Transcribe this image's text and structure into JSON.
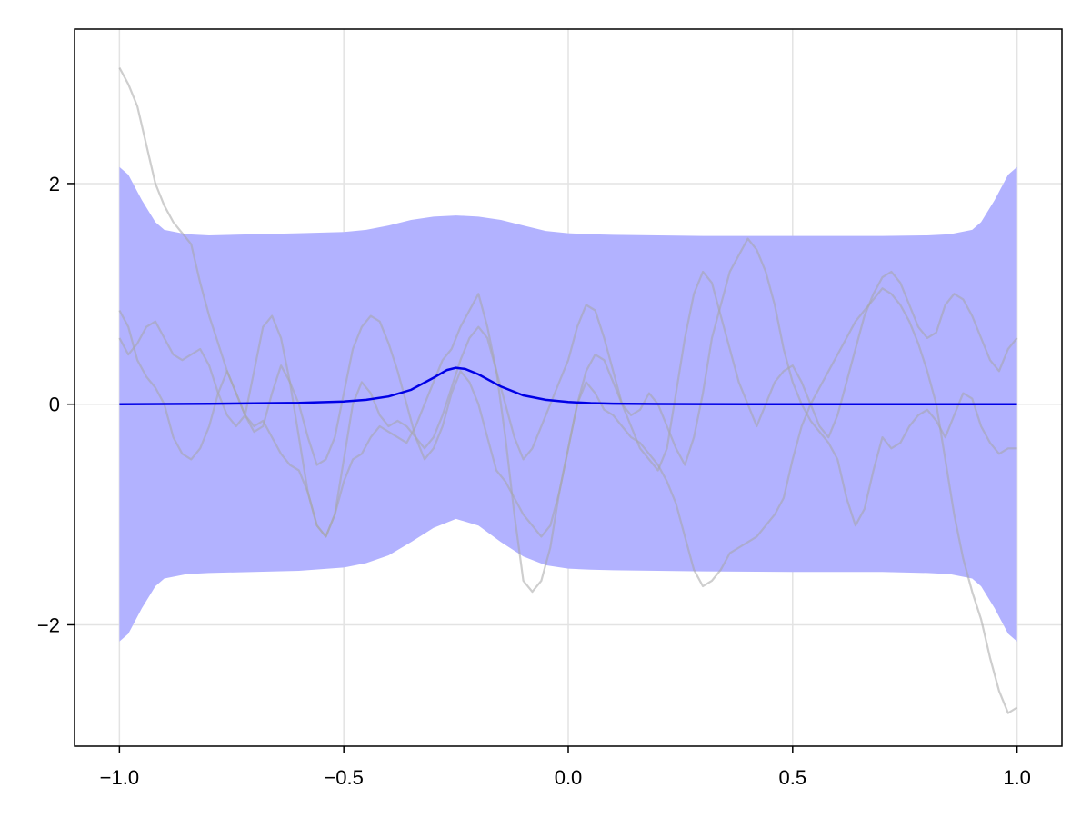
{
  "chart_data": {
    "type": "line",
    "title": "",
    "xlabel": "",
    "ylabel": "",
    "xlim": [
      -1.1,
      1.1
    ],
    "ylim": [
      -3.1,
      3.4
    ],
    "grid": true,
    "legend": "none",
    "xticks": [
      -1.0,
      -0.5,
      0.0,
      0.5,
      1.0
    ],
    "xtick_labels": [
      "−1.0",
      "−0.5",
      "0.0",
      "0.5",
      "1.0"
    ],
    "yticks": [
      -2,
      0,
      2
    ],
    "ytick_labels": [
      "−2",
      "0",
      "2"
    ],
    "colors": {
      "mean": "#0000e6",
      "band": "#b2b2ff",
      "samples": "#a6a6a6",
      "grid": "#e3e3e3",
      "frame": "#000000"
    },
    "band": {
      "x": [
        -1.0,
        -0.98,
        -0.95,
        -0.92,
        -0.9,
        -0.85,
        -0.8,
        -0.7,
        -0.6,
        -0.5,
        -0.45,
        -0.4,
        -0.35,
        -0.3,
        -0.25,
        -0.2,
        -0.15,
        -0.1,
        -0.05,
        0.0,
        0.05,
        0.1,
        0.2,
        0.3,
        0.5,
        0.7,
        0.8,
        0.85,
        0.9,
        0.92,
        0.95,
        0.98,
        1.0
      ],
      "upper": [
        2.15,
        2.08,
        1.85,
        1.65,
        1.58,
        1.54,
        1.53,
        1.54,
        1.55,
        1.56,
        1.58,
        1.62,
        1.67,
        1.7,
        1.71,
        1.7,
        1.67,
        1.62,
        1.57,
        1.55,
        1.54,
        1.535,
        1.53,
        1.525,
        1.525,
        1.525,
        1.53,
        1.54,
        1.58,
        1.65,
        1.85,
        2.08,
        2.15
      ],
      "lower": [
        -2.15,
        -2.08,
        -1.85,
        -1.65,
        -1.58,
        -1.54,
        -1.53,
        -1.52,
        -1.51,
        -1.48,
        -1.44,
        -1.37,
        -1.25,
        -1.12,
        -1.04,
        -1.1,
        -1.25,
        -1.38,
        -1.46,
        -1.49,
        -1.5,
        -1.505,
        -1.51,
        -1.515,
        -1.52,
        -1.52,
        -1.53,
        -1.54,
        -1.58,
        -1.65,
        -1.85,
        -2.08,
        -2.15
      ]
    },
    "mean": {
      "x": [
        -1.0,
        -0.8,
        -0.6,
        -0.5,
        -0.45,
        -0.4,
        -0.35,
        -0.3,
        -0.27,
        -0.25,
        -0.23,
        -0.2,
        -0.15,
        -0.1,
        -0.05,
        0.0,
        0.05,
        0.1,
        0.2,
        0.4,
        0.6,
        0.8,
        1.0
      ],
      "y": [
        0.0,
        0.003,
        0.012,
        0.025,
        0.04,
        0.07,
        0.13,
        0.24,
        0.31,
        0.33,
        0.32,
        0.27,
        0.16,
        0.08,
        0.04,
        0.02,
        0.01,
        0.005,
        0.002,
        0.0,
        0.0,
        0.0,
        0.0
      ]
    },
    "series": [
      {
        "x": [
          -1.0,
          -0.98,
          -0.96,
          -0.94,
          -0.92,
          -0.9,
          -0.88,
          -0.86,
          -0.84,
          -0.82,
          -0.8,
          -0.78,
          -0.76,
          -0.74,
          -0.72,
          -0.7,
          -0.68,
          -0.66,
          -0.64,
          -0.62,
          -0.6,
          -0.58,
          -0.56,
          -0.54,
          -0.52,
          -0.5,
          -0.48,
          -0.46,
          -0.44,
          -0.42,
          -0.4,
          -0.38,
          -0.36,
          -0.34,
          -0.32,
          -0.3,
          -0.28,
          -0.26,
          -0.24,
          -0.22,
          -0.2,
          -0.18,
          -0.16,
          -0.14,
          -0.12,
          -0.1,
          -0.08,
          -0.06,
          -0.04,
          -0.02,
          0.0,
          0.02,
          0.04,
          0.06,
          0.08,
          0.1,
          0.12,
          0.14,
          0.16,
          0.18,
          0.2,
          0.22,
          0.24,
          0.26,
          0.28,
          0.3,
          0.32,
          0.34,
          0.36,
          0.38,
          0.4,
          0.42,
          0.44,
          0.46,
          0.48,
          0.5,
          0.52,
          0.54,
          0.56,
          0.58,
          0.6,
          0.62,
          0.64,
          0.66,
          0.68,
          0.7,
          0.72,
          0.74,
          0.76,
          0.78,
          0.8,
          0.82,
          0.84,
          0.86,
          0.88,
          0.9,
          0.92,
          0.94,
          0.96,
          0.98,
          1.0
        ],
        "y": [
          3.05,
          2.9,
          2.7,
          2.35,
          2.0,
          1.8,
          1.65,
          1.55,
          1.45,
          1.1,
          0.8,
          0.55,
          0.3,
          0.1,
          -0.1,
          -0.2,
          -0.15,
          -0.3,
          -0.45,
          -0.55,
          -0.6,
          -0.8,
          -1.1,
          -1.2,
          -1.0,
          -0.7,
          -0.5,
          -0.45,
          -0.3,
          -0.2,
          -0.25,
          -0.3,
          -0.35,
          -0.2,
          0.0,
          0.2,
          0.4,
          0.5,
          0.7,
          0.85,
          1.0,
          0.7,
          0.3,
          -0.3,
          -1.0,
          -1.6,
          -1.7,
          -1.6,
          -1.3,
          -0.8,
          -0.4,
          0.0,
          0.2,
          0.1,
          -0.05,
          -0.1,
          -0.2,
          -0.3,
          -0.35,
          -0.45,
          -0.55,
          -0.7,
          -0.9,
          -1.2,
          -1.5,
          -1.65,
          -1.6,
          -1.5,
          -1.35,
          -1.3,
          -1.25,
          -1.2,
          -1.1,
          -1.0,
          -0.85,
          -0.5,
          -0.2,
          0.0,
          0.15,
          0.3,
          0.45,
          0.6,
          0.75,
          0.85,
          0.95,
          1.05,
          1.0,
          0.9,
          0.75,
          0.55,
          0.3,
          0.0,
          -0.5,
          -1.0,
          -1.4,
          -1.7,
          -1.95,
          -2.3,
          -2.6,
          -2.8,
          -2.75
        ]
      },
      {
        "x": [
          -1.0,
          -0.98,
          -0.96,
          -0.94,
          -0.92,
          -0.9,
          -0.88,
          -0.86,
          -0.84,
          -0.82,
          -0.8,
          -0.78,
          -0.76,
          -0.74,
          -0.72,
          -0.7,
          -0.68,
          -0.66,
          -0.64,
          -0.62,
          -0.6,
          -0.58,
          -0.56,
          -0.54,
          -0.52,
          -0.5,
          -0.48,
          -0.46,
          -0.44,
          -0.42,
          -0.4,
          -0.38,
          -0.36,
          -0.34,
          -0.32,
          -0.3,
          -0.28,
          -0.26,
          -0.24,
          -0.22,
          -0.2,
          -0.18,
          -0.16,
          -0.14,
          -0.12,
          -0.1,
          -0.08,
          -0.06,
          -0.04,
          -0.02,
          0.0,
          0.02,
          0.04,
          0.06,
          0.08,
          0.1,
          0.12,
          0.14,
          0.16,
          0.18,
          0.2,
          0.22,
          0.24,
          0.26,
          0.28,
          0.3,
          0.32,
          0.34,
          0.36,
          0.38,
          0.4,
          0.42,
          0.44,
          0.46,
          0.48,
          0.5,
          0.52,
          0.54,
          0.56,
          0.58,
          0.6,
          0.62,
          0.64,
          0.66,
          0.68,
          0.7,
          0.72,
          0.74,
          0.76,
          0.78,
          0.8,
          0.82,
          0.84,
          0.86,
          0.88,
          0.9,
          0.92,
          0.94,
          0.96,
          0.98,
          1.0
        ],
        "y": [
          0.85,
          0.7,
          0.4,
          0.25,
          0.15,
          0.0,
          -0.3,
          -0.45,
          -0.5,
          -0.4,
          -0.2,
          0.1,
          0.3,
          0.1,
          -0.1,
          -0.25,
          -0.2,
          0.1,
          0.35,
          0.2,
          0.0,
          -0.3,
          -0.55,
          -0.5,
          -0.3,
          0.1,
          0.5,
          0.7,
          0.8,
          0.75,
          0.55,
          0.3,
          0.0,
          -0.3,
          -0.5,
          -0.4,
          -0.2,
          0.1,
          0.3,
          0.2,
          0.0,
          -0.3,
          -0.6,
          -0.7,
          -0.85,
          -1.0,
          -1.1,
          -1.2,
          -1.1,
          -0.8,
          -0.4,
          0.0,
          0.3,
          0.45,
          0.4,
          0.2,
          0.0,
          -0.2,
          -0.4,
          -0.5,
          -0.6,
          -0.4,
          0.1,
          0.6,
          1.0,
          1.2,
          1.1,
          0.8,
          0.5,
          0.2,
          0.0,
          -0.2,
          0.0,
          0.2,
          0.3,
          0.35,
          0.2,
          0.0,
          -0.2,
          -0.3,
          -0.1,
          0.2,
          0.5,
          0.8,
          1.0,
          1.15,
          1.2,
          1.1,
          0.9,
          0.7,
          0.6,
          0.65,
          0.9,
          1.0,
          0.95,
          0.8,
          0.6,
          0.4,
          0.3,
          0.5,
          0.6
        ]
      },
      {
        "x": [
          -1.0,
          -0.98,
          -0.96,
          -0.94,
          -0.92,
          -0.9,
          -0.88,
          -0.86,
          -0.84,
          -0.82,
          -0.8,
          -0.78,
          -0.76,
          -0.74,
          -0.72,
          -0.7,
          -0.68,
          -0.66,
          -0.64,
          -0.62,
          -0.6,
          -0.58,
          -0.56,
          -0.54,
          -0.52,
          -0.5,
          -0.48,
          -0.46,
          -0.44,
          -0.42,
          -0.4,
          -0.38,
          -0.36,
          -0.34,
          -0.32,
          -0.3,
          -0.28,
          -0.26,
          -0.24,
          -0.22,
          -0.2,
          -0.18,
          -0.16,
          -0.14,
          -0.12,
          -0.1,
          -0.08,
          -0.06,
          -0.04,
          -0.02,
          0.0,
          0.02,
          0.04,
          0.06,
          0.08,
          0.1,
          0.12,
          0.14,
          0.16,
          0.18,
          0.2,
          0.22,
          0.24,
          0.26,
          0.28,
          0.3,
          0.32,
          0.34,
          0.36,
          0.38,
          0.4,
          0.42,
          0.44,
          0.46,
          0.48,
          0.5,
          0.52,
          0.54,
          0.56,
          0.58,
          0.6,
          0.62,
          0.64,
          0.66,
          0.68,
          0.7,
          0.72,
          0.74,
          0.76,
          0.78,
          0.8,
          0.82,
          0.84,
          0.86,
          0.88,
          0.9,
          0.92,
          0.94,
          0.96,
          0.98,
          1.0
        ],
        "y": [
          0.6,
          0.45,
          0.55,
          0.7,
          0.75,
          0.6,
          0.45,
          0.4,
          0.45,
          0.5,
          0.35,
          0.1,
          -0.1,
          -0.2,
          -0.1,
          0.3,
          0.7,
          0.8,
          0.6,
          0.2,
          -0.3,
          -0.8,
          -1.1,
          -1.2,
          -1.0,
          -0.5,
          0.0,
          0.2,
          0.1,
          -0.1,
          -0.2,
          -0.15,
          -0.2,
          -0.3,
          -0.4,
          -0.3,
          -0.1,
          0.15,
          0.4,
          0.6,
          0.7,
          0.6,
          0.3,
          0.0,
          -0.3,
          -0.5,
          -0.4,
          -0.2,
          0.0,
          0.2,
          0.4,
          0.7,
          0.9,
          0.85,
          0.6,
          0.3,
          0.0,
          -0.1,
          -0.05,
          0.1,
          0.0,
          -0.2,
          -0.4,
          -0.55,
          -0.3,
          0.1,
          0.6,
          0.9,
          1.2,
          1.35,
          1.5,
          1.4,
          1.2,
          0.9,
          0.5,
          0.2,
          0.0,
          -0.15,
          -0.25,
          -0.35,
          -0.5,
          -0.85,
          -1.1,
          -0.95,
          -0.6,
          -0.3,
          -0.4,
          -0.35,
          -0.2,
          -0.1,
          -0.05,
          -0.15,
          -0.3,
          -0.1,
          0.1,
          0.05,
          -0.2,
          -0.35,
          -0.45,
          -0.4,
          -0.4
        ]
      }
    ]
  }
}
